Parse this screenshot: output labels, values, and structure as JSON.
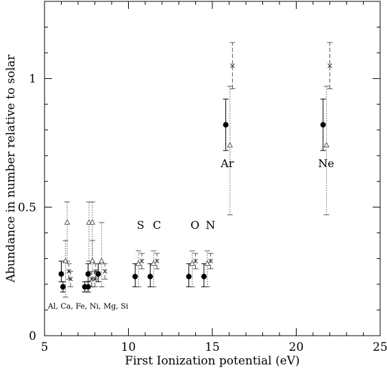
{
  "chart_data": {
    "type": "scatter",
    "title": "",
    "xlabel": "First Ionization potential (eV)",
    "ylabel": "Abundance in number relative to solar",
    "xlim": [
      5,
      25
    ],
    "ylim": [
      0,
      1.3
    ],
    "xticks": [
      "5",
      "10",
      "15",
      "20",
      "25"
    ],
    "yticks": [
      "0",
      "0.5",
      "1"
    ],
    "annotations": [
      {
        "text": "Al, Ca, Fe, Ni, Mg, Si",
        "x": 5.2,
        "y": 0.105,
        "size": "small"
      },
      {
        "text": "S",
        "x": 10.5,
        "y": 0.415
      },
      {
        "text": "C",
        "x": 11.45,
        "y": 0.415
      },
      {
        "text": "O",
        "x": 13.7,
        "y": 0.415
      },
      {
        "text": "N",
        "x": 14.6,
        "y": 0.415
      },
      {
        "text": "Ar",
        "x": 15.5,
        "y": 0.655
      },
      {
        "text": "Ne",
        "x": 21.3,
        "y": 0.655
      }
    ],
    "series": [
      {
        "marker": "filled-circle",
        "errorbar_style": "solid",
        "points": [
          {
            "x": 6.0,
            "y": 0.24,
            "lo": 0.21,
            "hi": 0.29
          },
          {
            "x": 6.1,
            "y": 0.19,
            "lo": 0.17,
            "hi": 0.21
          },
          {
            "x": 7.4,
            "y": 0.19,
            "lo": 0.17,
            "hi": 0.21
          },
          {
            "x": 7.6,
            "y": 0.19,
            "lo": 0.17,
            "hi": 0.21
          },
          {
            "x": 7.6,
            "y": 0.24,
            "lo": 0.21,
            "hi": 0.28
          },
          {
            "x": 8.2,
            "y": 0.24,
            "lo": 0.21,
            "hi": 0.28
          },
          {
            "x": 10.4,
            "y": 0.23,
            "lo": 0.19,
            "hi": 0.28
          },
          {
            "x": 11.3,
            "y": 0.23,
            "lo": 0.19,
            "hi": 0.28
          },
          {
            "x": 13.6,
            "y": 0.23,
            "lo": 0.19,
            "hi": 0.28
          },
          {
            "x": 14.5,
            "y": 0.23,
            "lo": 0.19,
            "hi": 0.28
          },
          {
            "x": 15.8,
            "y": 0.82,
            "lo": 0.72,
            "hi": 0.92
          },
          {
            "x": 21.6,
            "y": 0.82,
            "lo": 0.72,
            "hi": 0.92
          }
        ]
      },
      {
        "marker": "open-triangle",
        "errorbar_style": "dotted",
        "points": [
          {
            "x": 6.25,
            "y": 0.29,
            "lo": 0.15,
            "hi": 0.37
          },
          {
            "x": 6.35,
            "y": 0.44,
            "lo": 0.29,
            "hi": 0.52
          },
          {
            "x": 7.65,
            "y": 0.44,
            "lo": 0.29,
            "hi": 0.52
          },
          {
            "x": 7.85,
            "y": 0.44,
            "lo": 0.29,
            "hi": 0.52
          },
          {
            "x": 7.85,
            "y": 0.29,
            "lo": 0.19,
            "hi": 0.37
          },
          {
            "x": 8.4,
            "y": 0.29,
            "lo": 0.19,
            "hi": 0.44
          },
          {
            "x": 10.6,
            "y": 0.28,
            "lo": 0.19,
            "hi": 0.33
          },
          {
            "x": 11.5,
            "y": 0.28,
            "lo": 0.19,
            "hi": 0.33
          },
          {
            "x": 13.8,
            "y": 0.28,
            "lo": 0.19,
            "hi": 0.33
          },
          {
            "x": 14.7,
            "y": 0.28,
            "lo": 0.19,
            "hi": 0.33
          },
          {
            "x": 16.05,
            "y": 0.74,
            "lo": 0.47,
            "hi": 0.97
          },
          {
            "x": 21.8,
            "y": 0.74,
            "lo": 0.47,
            "hi": 0.97
          }
        ]
      },
      {
        "marker": "cross",
        "errorbar_style": "dashed",
        "points": [
          {
            "x": 6.45,
            "y": 0.25,
            "lo": 0.22,
            "hi": 0.28
          },
          {
            "x": 6.55,
            "y": 0.22,
            "lo": 0.19,
            "hi": 0.25
          },
          {
            "x": 7.8,
            "y": 0.22,
            "lo": 0.19,
            "hi": 0.25
          },
          {
            "x": 8.0,
            "y": 0.22,
            "lo": 0.19,
            "hi": 0.25
          },
          {
            "x": 8.05,
            "y": 0.25,
            "lo": 0.22,
            "hi": 0.28
          },
          {
            "x": 8.6,
            "y": 0.25,
            "lo": 0.22,
            "hi": 0.28
          },
          {
            "x": 10.8,
            "y": 0.29,
            "lo": 0.26,
            "hi": 0.32
          },
          {
            "x": 11.7,
            "y": 0.29,
            "lo": 0.26,
            "hi": 0.32
          },
          {
            "x": 14.0,
            "y": 0.29,
            "lo": 0.26,
            "hi": 0.32
          },
          {
            "x": 14.9,
            "y": 0.29,
            "lo": 0.26,
            "hi": 0.32
          },
          {
            "x": 16.2,
            "y": 1.05,
            "lo": 0.96,
            "hi": 1.14
          },
          {
            "x": 22.0,
            "y": 1.05,
            "lo": 0.96,
            "hi": 1.14
          }
        ]
      }
    ]
  }
}
